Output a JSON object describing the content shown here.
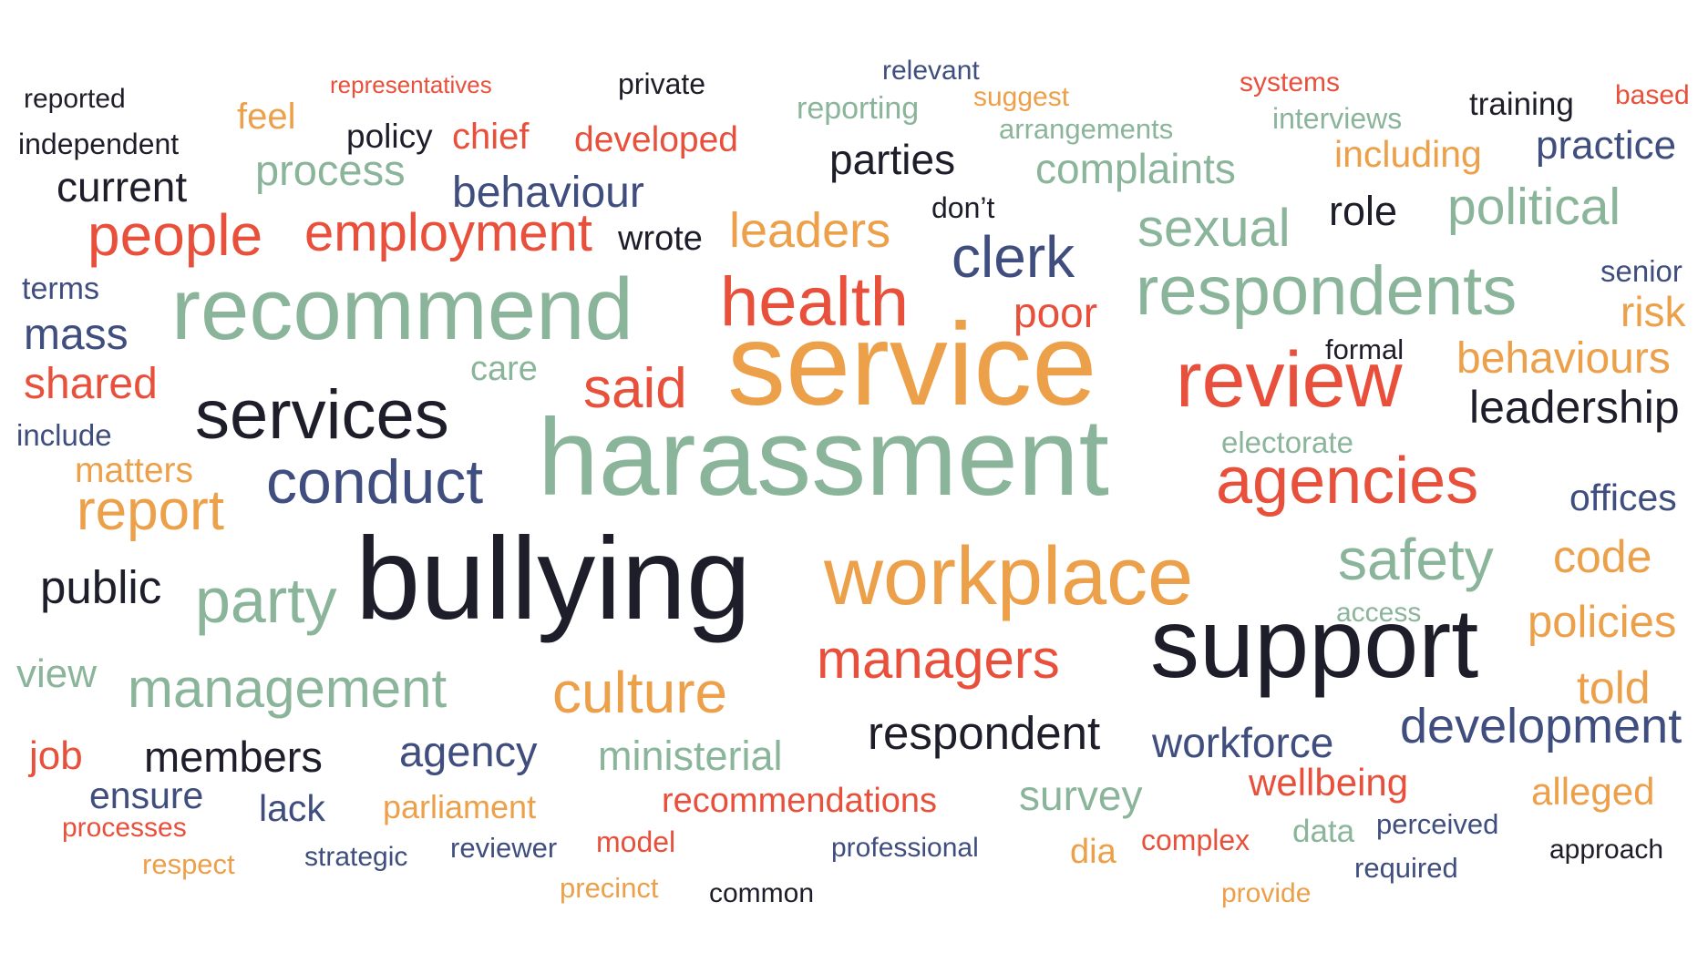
{
  "colors": {
    "orange": "#EDA04A",
    "red": "#E8503C",
    "green": "#8BB59A",
    "navy": "#3F4E7E",
    "black": "#1E1E2A"
  },
  "words": [
    {
      "text": "reported",
      "color": "black"
    },
    {
      "text": "representatives",
      "color": "red"
    },
    {
      "text": "private",
      "color": "black"
    },
    {
      "text": "relevant",
      "color": "navy"
    },
    {
      "text": "suggest",
      "color": "orange"
    },
    {
      "text": "systems",
      "color": "red"
    },
    {
      "text": "training",
      "color": "black"
    },
    {
      "text": "based",
      "color": "red"
    },
    {
      "text": "independent",
      "color": "black"
    },
    {
      "text": "feel",
      "color": "orange"
    },
    {
      "text": "policy",
      "color": "black"
    },
    {
      "text": "chief",
      "color": "red"
    },
    {
      "text": "developed",
      "color": "red"
    },
    {
      "text": "reporting",
      "color": "green"
    },
    {
      "text": "arrangements",
      "color": "green"
    },
    {
      "text": "interviews",
      "color": "green"
    },
    {
      "text": "practice",
      "color": "navy"
    },
    {
      "text": "including",
      "color": "orange"
    },
    {
      "text": "current",
      "color": "black"
    },
    {
      "text": "process",
      "color": "green"
    },
    {
      "text": "parties",
      "color": "black"
    },
    {
      "text": "complaints",
      "color": "green"
    },
    {
      "text": "behaviour",
      "color": "navy"
    },
    {
      "text": "don’t",
      "color": "black"
    },
    {
      "text": "role",
      "color": "black"
    },
    {
      "text": "political",
      "color": "green"
    },
    {
      "text": "people",
      "color": "red"
    },
    {
      "text": "employment",
      "color": "red"
    },
    {
      "text": "wrote",
      "color": "black"
    },
    {
      "text": "leaders",
      "color": "orange"
    },
    {
      "text": "sexual",
      "color": "green"
    },
    {
      "text": "clerk",
      "color": "navy"
    },
    {
      "text": "terms",
      "color": "navy"
    },
    {
      "text": "senior",
      "color": "navy"
    },
    {
      "text": "recommend",
      "color": "green"
    },
    {
      "text": "health",
      "color": "red"
    },
    {
      "text": "respondents",
      "color": "green"
    },
    {
      "text": "risk",
      "color": "orange"
    },
    {
      "text": "mass",
      "color": "navy"
    },
    {
      "text": "poor",
      "color": "red"
    },
    {
      "text": "formal",
      "color": "black"
    },
    {
      "text": "behaviours",
      "color": "orange"
    },
    {
      "text": "care",
      "color": "green"
    },
    {
      "text": "shared",
      "color": "red"
    },
    {
      "text": "service",
      "color": "orange"
    },
    {
      "text": "said",
      "color": "red"
    },
    {
      "text": "review",
      "color": "red"
    },
    {
      "text": "leadership",
      "color": "black"
    },
    {
      "text": "services",
      "color": "black"
    },
    {
      "text": "include",
      "color": "navy"
    },
    {
      "text": "electorate",
      "color": "green"
    },
    {
      "text": "matters",
      "color": "orange"
    },
    {
      "text": "harassment",
      "color": "green"
    },
    {
      "text": "conduct",
      "color": "navy"
    },
    {
      "text": "agencies",
      "color": "red"
    },
    {
      "text": "offices",
      "color": "navy"
    },
    {
      "text": "report",
      "color": "orange"
    },
    {
      "text": "code",
      "color": "orange"
    },
    {
      "text": "safety",
      "color": "green"
    },
    {
      "text": "workplace",
      "color": "orange"
    },
    {
      "text": "public",
      "color": "black"
    },
    {
      "text": "bullying",
      "color": "black"
    },
    {
      "text": "party",
      "color": "green"
    },
    {
      "text": "access",
      "color": "green"
    },
    {
      "text": "policies",
      "color": "orange"
    },
    {
      "text": "support",
      "color": "black"
    },
    {
      "text": "view",
      "color": "green"
    },
    {
      "text": "managers",
      "color": "red"
    },
    {
      "text": "management",
      "color": "green"
    },
    {
      "text": "told",
      "color": "orange"
    },
    {
      "text": "culture",
      "color": "orange"
    },
    {
      "text": "development",
      "color": "navy"
    },
    {
      "text": "respondent",
      "color": "black"
    },
    {
      "text": "workforce",
      "color": "navy"
    },
    {
      "text": "job",
      "color": "red"
    },
    {
      "text": "members",
      "color": "black"
    },
    {
      "text": "agency",
      "color": "navy"
    },
    {
      "text": "ministerial",
      "color": "green"
    },
    {
      "text": "wellbeing",
      "color": "red"
    },
    {
      "text": "alleged",
      "color": "orange"
    },
    {
      "text": "survey",
      "color": "green"
    },
    {
      "text": "ensure",
      "color": "navy"
    },
    {
      "text": "lack",
      "color": "navy"
    },
    {
      "text": "parliament",
      "color": "orange"
    },
    {
      "text": "recommendations",
      "color": "red"
    },
    {
      "text": "processes",
      "color": "red"
    },
    {
      "text": "perceived",
      "color": "navy"
    },
    {
      "text": "data",
      "color": "green"
    },
    {
      "text": "complex",
      "color": "red"
    },
    {
      "text": "model",
      "color": "red"
    },
    {
      "text": "reviewer",
      "color": "navy"
    },
    {
      "text": "professional",
      "color": "navy"
    },
    {
      "text": "dia",
      "color": "orange"
    },
    {
      "text": "approach",
      "color": "black"
    },
    {
      "text": "strategic",
      "color": "navy"
    },
    {
      "text": "respect",
      "color": "orange"
    },
    {
      "text": "required",
      "color": "navy"
    },
    {
      "text": "precinct",
      "color": "orange"
    },
    {
      "text": "common",
      "color": "black"
    },
    {
      "text": "provide",
      "color": "orange"
    }
  ]
}
